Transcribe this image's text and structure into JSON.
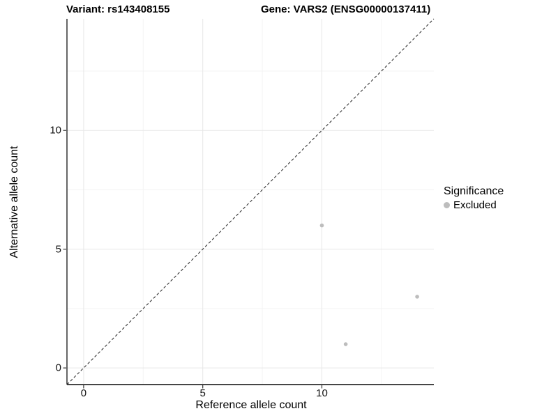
{
  "chart_data": {
    "type": "scatter",
    "titles": {
      "left": "Variant: rs143408155",
      "right": "Gene: VARS2 (ENSG00000137411)"
    },
    "xlabel": "Reference allele count",
    "ylabel": "Alternative allele count",
    "xlim": [
      -0.7,
      14.7
    ],
    "ylim": [
      -0.7,
      14.7
    ],
    "x_ticks": [
      0,
      5,
      10
    ],
    "y_ticks": [
      0,
      5,
      10
    ],
    "x_minor_ticks": [
      2.5,
      7.5,
      12.5
    ],
    "y_minor_ticks": [
      2.5,
      7.5,
      12.5
    ],
    "grid": true,
    "identity_line": {
      "slope": 1,
      "intercept": 0,
      "style": "dashed",
      "color": "#333333"
    },
    "series": [
      {
        "name": "Excluded",
        "color": "#bdbdbd",
        "points": [
          [
            10,
            6
          ],
          [
            11,
            1
          ],
          [
            14,
            3
          ]
        ]
      }
    ],
    "legend": {
      "title": "Significance",
      "position": "right",
      "items": [
        {
          "label": "Excluded",
          "color": "#bdbdbd",
          "marker": "circle"
        }
      ]
    },
    "colors": {
      "major_grid": "#e7e7e7",
      "minor_grid": "#f3f3f3",
      "axis_line": "#2b2b2b",
      "tick_mark": "#333333",
      "text": "#000000"
    }
  }
}
